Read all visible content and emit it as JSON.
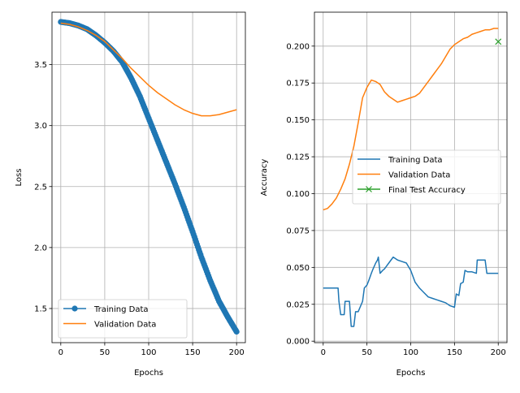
{
  "chart_data": [
    {
      "type": "line",
      "xlabel": "Epochs",
      "ylabel": "Loss",
      "xlim": [
        -10,
        210
      ],
      "ylim": [
        1.22,
        3.93
      ],
      "xticks": [
        0,
        50,
        100,
        150,
        200
      ],
      "xtick_labels": [
        "0",
        "50",
        "100",
        "150",
        "200"
      ],
      "yticks": [
        1.5,
        2.0,
        2.5,
        3.0,
        3.5
      ],
      "ytick_labels": [
        "1.5",
        "2.0",
        "2.5",
        "3.0",
        "3.5"
      ],
      "grid": true,
      "legend_position": "lower-left",
      "legend": [
        "Training Data",
        "Validation Data"
      ],
      "series": [
        {
          "name": "Training Data",
          "color": "#1f77b4",
          "marker": "circle",
          "x": [
            0,
            10,
            20,
            30,
            40,
            50,
            60,
            70,
            80,
            90,
            100,
            110,
            120,
            130,
            140,
            150,
            160,
            170,
            180,
            190,
            200
          ],
          "y": [
            3.85,
            3.84,
            3.82,
            3.79,
            3.74,
            3.68,
            3.61,
            3.52,
            3.39,
            3.24,
            3.06,
            2.88,
            2.7,
            2.52,
            2.33,
            2.13,
            1.92,
            1.73,
            1.56,
            1.43,
            1.31
          ]
        },
        {
          "name": "Validation Data",
          "color": "#ff7f0e",
          "marker": "none",
          "x": [
            0,
            10,
            20,
            30,
            40,
            50,
            60,
            70,
            80,
            90,
            100,
            110,
            120,
            130,
            140,
            150,
            160,
            170,
            180,
            190,
            200
          ],
          "y": [
            3.84,
            3.83,
            3.81,
            3.78,
            3.74,
            3.69,
            3.62,
            3.55,
            3.47,
            3.4,
            3.33,
            3.27,
            3.22,
            3.17,
            3.13,
            3.1,
            3.08,
            3.08,
            3.09,
            3.11,
            3.13
          ]
        }
      ]
    },
    {
      "type": "line",
      "xlabel": "Epochs",
      "ylabel": "Accuracy",
      "xlim": [
        -10,
        210
      ],
      "ylim": [
        -0.001,
        0.223
      ],
      "xticks": [
        0,
        50,
        100,
        150,
        200
      ],
      "xtick_labels": [
        "0",
        "50",
        "100",
        "150",
        "200"
      ],
      "yticks": [
        0.0,
        0.025,
        0.05,
        0.075,
        0.1,
        0.125,
        0.15,
        0.175,
        0.2
      ],
      "ytick_labels": [
        "0.000",
        "0.025",
        "0.050",
        "0.075",
        "0.100",
        "0.125",
        "0.150",
        "0.175",
        "0.200"
      ],
      "grid": true,
      "legend_position": "center-right",
      "legend": [
        "Training Data",
        "Validation Data",
        "Final Test Accuracy"
      ],
      "series": [
        {
          "name": "Training Data",
          "color": "#1f77b4",
          "marker": "none",
          "x": [
            0,
            17,
            18,
            20,
            24,
            25,
            30,
            32,
            35,
            37,
            40,
            45,
            47,
            50,
            52,
            55,
            57,
            60,
            62,
            63,
            65,
            68,
            70,
            75,
            80,
            85,
            90,
            95,
            100,
            105,
            110,
            115,
            120,
            125,
            130,
            135,
            140,
            145,
            150,
            152,
            155,
            157,
            160,
            162,
            165,
            170,
            175,
            176,
            178,
            185,
            187,
            190,
            200
          ],
          "y": [
            0.036,
            0.036,
            0.027,
            0.018,
            0.018,
            0.027,
            0.027,
            0.01,
            0.01,
            0.02,
            0.02,
            0.027,
            0.036,
            0.038,
            0.041,
            0.046,
            0.049,
            0.053,
            0.055,
            0.057,
            0.046,
            0.048,
            0.049,
            0.053,
            0.057,
            0.055,
            0.054,
            0.053,
            0.048,
            0.04,
            0.036,
            0.033,
            0.03,
            0.029,
            0.028,
            0.027,
            0.026,
            0.024,
            0.023,
            0.032,
            0.031,
            0.039,
            0.04,
            0.048,
            0.047,
            0.047,
            0.046,
            0.055,
            0.055,
            0.055,
            0.046,
            0.046,
            0.046
          ]
        },
        {
          "name": "Validation Data",
          "color": "#ff7f0e",
          "marker": "none",
          "x": [
            0,
            5,
            10,
            15,
            20,
            25,
            30,
            35,
            40,
            45,
            50,
            55,
            60,
            65,
            70,
            75,
            80,
            85,
            90,
            95,
            100,
            105,
            110,
            115,
            120,
            125,
            130,
            135,
            140,
            145,
            150,
            155,
            160,
            165,
            170,
            175,
            180,
            185,
            190,
            195,
            200
          ],
          "y": [
            0.089,
            0.09,
            0.093,
            0.097,
            0.103,
            0.11,
            0.12,
            0.132,
            0.148,
            0.165,
            0.172,
            0.177,
            0.176,
            0.174,
            0.169,
            0.166,
            0.164,
            0.162,
            0.163,
            0.164,
            0.165,
            0.166,
            0.168,
            0.172,
            0.176,
            0.18,
            0.184,
            0.188,
            0.193,
            0.198,
            0.201,
            0.203,
            0.205,
            0.206,
            0.208,
            0.209,
            0.21,
            0.211,
            0.211,
            0.212,
            0.212
          ]
        },
        {
          "name": "Final Test Accuracy",
          "color": "#2ca02c",
          "marker": "x",
          "x": [
            200
          ],
          "y": [
            0.203
          ]
        }
      ]
    }
  ]
}
